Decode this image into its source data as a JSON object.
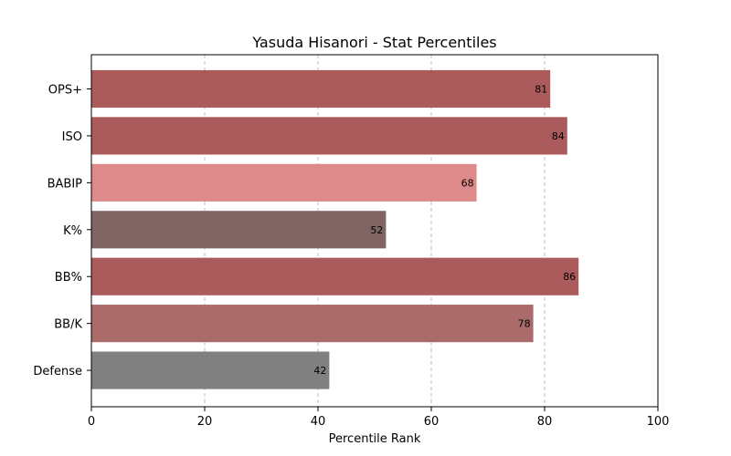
{
  "chart_data": {
    "type": "bar",
    "orientation": "horizontal",
    "title": "Yasuda Hisanori - Stat Percentiles",
    "xlabel": "Percentile Rank",
    "ylabel": "",
    "xlim": [
      0,
      100
    ],
    "xticks": [
      0,
      20,
      40,
      60,
      80,
      100
    ],
    "grid": "vertical-dashed",
    "categories": [
      "OPS+",
      "ISO",
      "BABIP",
      "K%",
      "BB%",
      "BB/K",
      "Defense"
    ],
    "values": [
      81,
      84,
      68,
      52,
      86,
      78,
      42
    ],
    "data_labels": [
      "81",
      "84",
      "68",
      "52",
      "86",
      "78",
      "42"
    ],
    "colors": [
      "#ab5b5b",
      "#ab5b5b",
      "#df8a8a",
      "#806565",
      "#ab5b5b",
      "#ab6b6b",
      "#808080"
    ]
  }
}
